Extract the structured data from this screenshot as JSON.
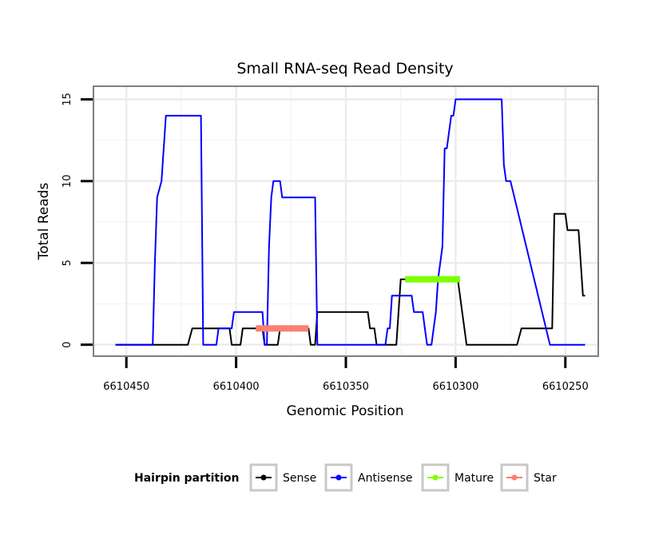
{
  "chart_data": {
    "type": "line",
    "title": "Small RNA-seq Read Density",
    "xlabel": "Genomic Position",
    "ylabel": "Total Reads",
    "xlim": [
      6610465,
      6610235
    ],
    "x_reversed": true,
    "ylim": [
      -0.7,
      15.8
    ],
    "xticks": [
      6610450,
      6610400,
      6610350,
      6610300,
      6610250
    ],
    "xtick_labels": [
      "6610450",
      "6610400",
      "6610350",
      "6610300",
      "6610250"
    ],
    "yticks": [
      0,
      5,
      10,
      15
    ],
    "ytick_labels": [
      "0",
      "5",
      "10",
      "15"
    ],
    "grid": true,
    "legend": {
      "title": "Hairpin partition",
      "position": "bottom",
      "entries": [
        {
          "label": "Sense",
          "color": "#000000"
        },
        {
          "label": "Antisense",
          "color": "#0000ff"
        },
        {
          "label": "Mature",
          "color": "#7fff00"
        },
        {
          "label": "Star",
          "color": "#fa8072"
        }
      ]
    },
    "series": [
      {
        "name": "Sense",
        "color": "#000000",
        "x": [
          6610455,
          6610422,
          6610420,
          6610403,
          6610402,
          6610398,
          6610397,
          6610388,
          6610387,
          6610381,
          6610380,
          6610367,
          6610366,
          6610364,
          6610363,
          6610340,
          6610339,
          6610337,
          6610336,
          6610327,
          6610325,
          6610299,
          6610298,
          6610297,
          6610296,
          6610295,
          6610294,
          6610293,
          6610291,
          6610288,
          6610287,
          6610286,
          6610285,
          6610283,
          6610281,
          6610277,
          6610276,
          6610272,
          6610270,
          6610256,
          6610255,
          6610250,
          6610249,
          6610244,
          6610242,
          6610241
        ],
        "y": [
          0,
          0,
          1,
          1,
          0,
          0,
          1,
          1,
          0,
          0,
          1,
          1,
          0,
          0,
          2,
          2,
          1,
          1,
          0,
          0,
          4,
          4,
          3,
          2,
          1,
          0,
          0,
          0,
          0,
          0,
          0,
          0,
          0,
          0,
          0,
          0,
          0,
          0,
          1,
          1,
          8,
          8,
          7,
          7,
          3,
          3
        ]
      },
      {
        "name": "Antisense",
        "color": "#0000ff",
        "x": [
          6610455,
          6610438,
          6610437,
          6610436,
          6610434,
          6610432,
          6610416,
          6610415,
          6610409,
          6610408,
          6610402,
          6610401,
          6610388,
          6610387,
          6610386,
          6610385,
          6610384,
          6610383,
          6610380,
          6610379,
          6610364,
          6610363,
          6610332,
          6610331,
          6610330,
          6610329,
          6610320,
          6610319,
          6610315,
          6610314,
          6610313,
          6610311,
          6610310,
          6610309,
          6610308,
          6610306,
          6610305,
          6610304,
          6610302,
          6610301,
          6610300,
          6610293,
          6610292,
          6610280,
          6610279,
          6610278,
          6610277,
          6610276,
          6610275,
          6610257,
          6610256,
          6610255,
          6610253,
          6610252,
          6610241
        ],
        "y": [
          0,
          0,
          5,
          9,
          10,
          14,
          14,
          0,
          0,
          1,
          1,
          2,
          2,
          0,
          0,
          6,
          9,
          10,
          10,
          9,
          9,
          0,
          0,
          1,
          1,
          3,
          3,
          2,
          2,
          1,
          0,
          0,
          1,
          2,
          4,
          6,
          12,
          12,
          14,
          14,
          15,
          15,
          15,
          15,
          15,
          11,
          10,
          10,
          10,
          0,
          0,
          0,
          0,
          0,
          0
        ]
      },
      {
        "name": "Mature",
        "color": "#7fff00",
        "x": [
          6610323,
          6610298
        ],
        "y": [
          4,
          4
        ]
      },
      {
        "name": "Star",
        "color": "#fa8072",
        "x": [
          6610391,
          6610367
        ],
        "y": [
          1,
          1
        ]
      }
    ]
  }
}
